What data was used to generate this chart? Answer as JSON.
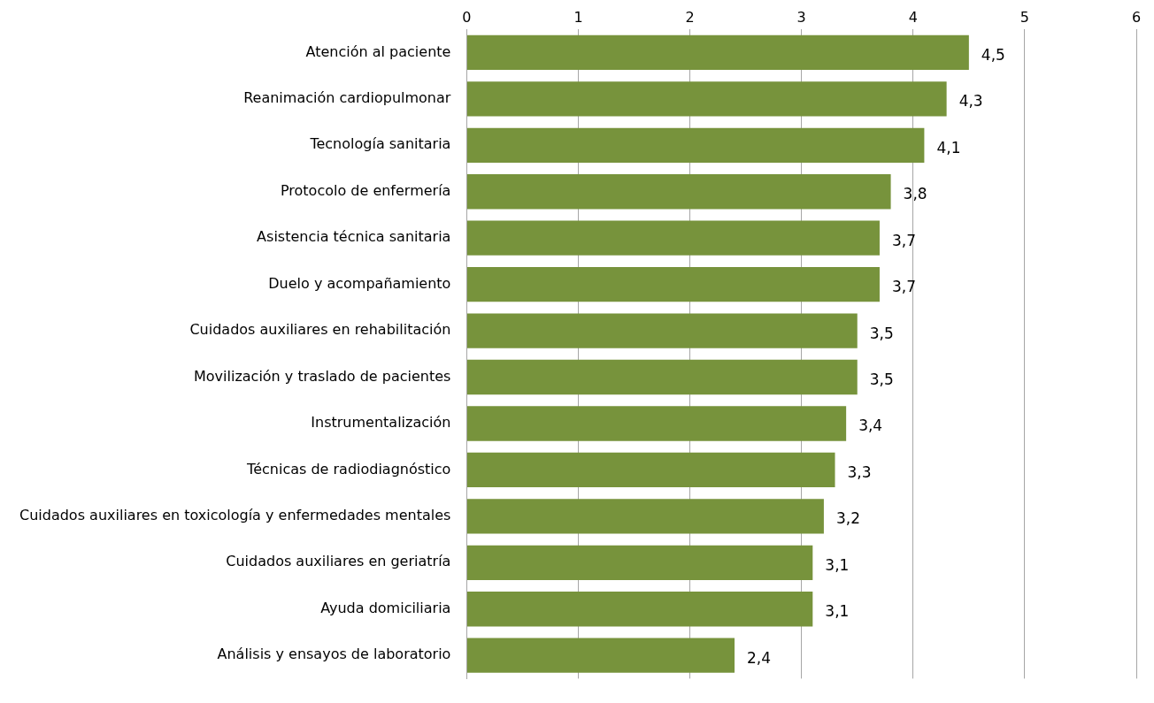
{
  "chart_data": {
    "type": "bar",
    "orientation": "horizontal",
    "categories": [
      "Atención al paciente",
      "Reanimación cardiopulmonar",
      "Tecnología sanitaria",
      "Protocolo de enfermería",
      "Asistencia técnica sanitaria",
      "Duelo y acompañamiento",
      "Cuidados auxiliares en rehabilitación",
      "Movilización y traslado de pacientes",
      "Instrumentalización",
      "Técnicas de radiodiagnóstico",
      "Cuidados auxiliares en toxicología y enfermedades mentales",
      "Cuidados auxiliares en geriatría",
      "Ayuda domiciliaria",
      "Análisis y ensayos de laboratorio"
    ],
    "values": [
      4.5,
      4.3,
      4.1,
      3.8,
      3.7,
      3.7,
      3.5,
      3.5,
      3.4,
      3.3,
      3.2,
      3.1,
      3.1,
      2.4
    ],
    "value_labels": [
      "4,5",
      "4,3",
      "4,1",
      "3,8",
      "3,7",
      "3,7",
      "3,5",
      "3,5",
      "3,4",
      "3,3",
      "3,2",
      "3,1",
      "3,1",
      "2,4"
    ],
    "color": "#77933c",
    "xlim": [
      0,
      6
    ],
    "xticks": [
      0,
      1,
      2,
      3,
      4,
      5,
      6
    ],
    "grid": "x",
    "legend": false
  }
}
